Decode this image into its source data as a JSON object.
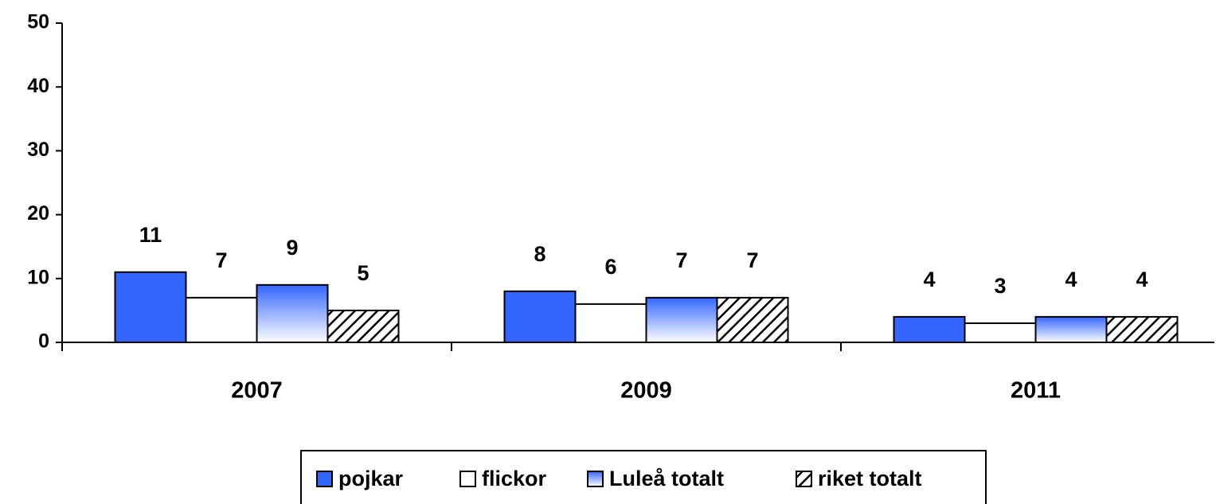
{
  "chart_data": {
    "type": "bar",
    "categories": [
      "2007",
      "2009",
      "2011"
    ],
    "series": [
      {
        "name": "pojkar",
        "color": "#3366ff",
        "pattern": "solid",
        "values": [
          11,
          8,
          4
        ]
      },
      {
        "name": "flickor",
        "color": "#ffffff",
        "pattern": "solid",
        "values": [
          7,
          6,
          3
        ]
      },
      {
        "name": "Luleå totalt",
        "color": "#3366ff",
        "pattern": "gradient",
        "values": [
          9,
          7,
          4
        ]
      },
      {
        "name": "riket totalt",
        "color": "#000000",
        "pattern": "hatch",
        "values": [
          5,
          7,
          4
        ]
      }
    ],
    "ylim": [
      0,
      50
    ],
    "yticks": [
      0,
      10,
      20,
      30,
      40,
      50
    ],
    "grid": false,
    "legend": "bottom"
  }
}
